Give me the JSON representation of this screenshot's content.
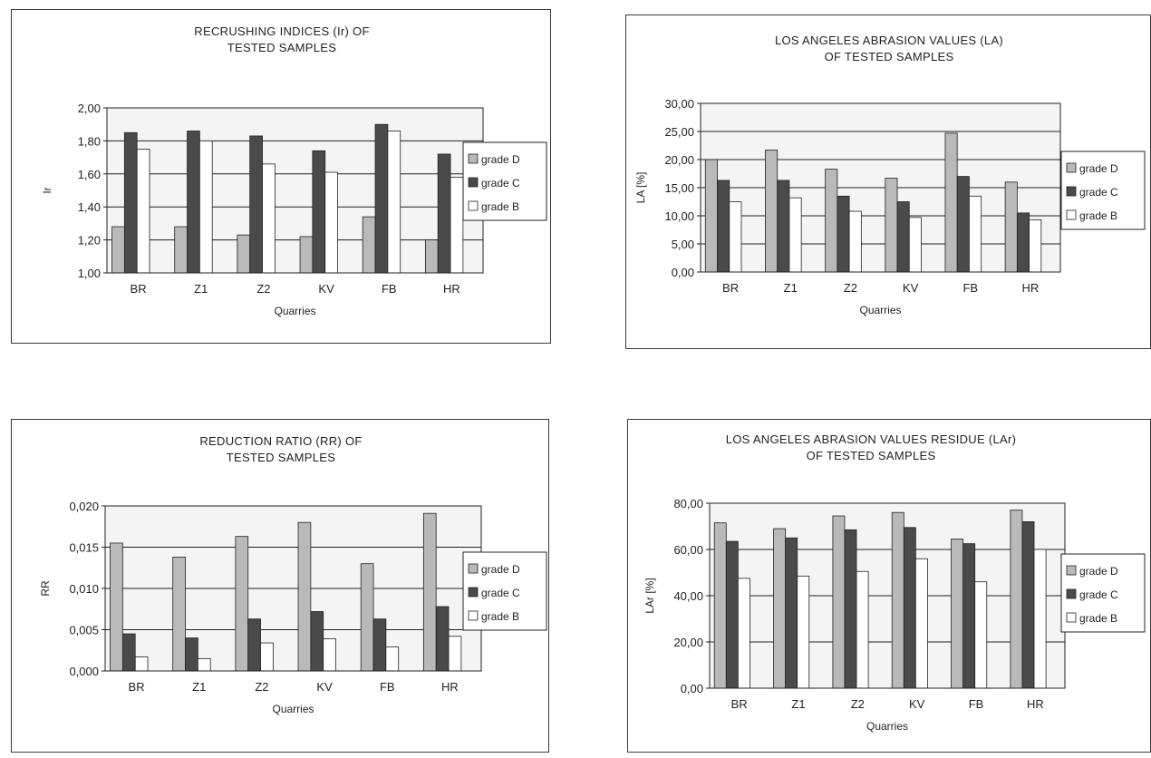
{
  "chart_data": [
    {
      "type": "bar",
      "title": "RECRUSHING INDICES (Ir) OF",
      "subtitle": "TESTED SAMPLES",
      "xlabel": "Quarries",
      "ylabel": "Ir",
      "categories": [
        "BR",
        "Z1",
        "Z2",
        "KV",
        "FB",
        "HR"
      ],
      "ylim": [
        1.0,
        2.0
      ],
      "yticks": [
        "1,00",
        "1,20",
        "1,40",
        "1,60",
        "1,80",
        "2,00"
      ],
      "grid": true,
      "legend": "right",
      "series": [
        {
          "name": "grade D",
          "values": [
            1.28,
            1.28,
            1.23,
            1.22,
            1.34,
            1.2
          ]
        },
        {
          "name": "grade C",
          "values": [
            1.85,
            1.86,
            1.83,
            1.74,
            1.9,
            1.72
          ]
        },
        {
          "name": "grade B",
          "values": [
            1.75,
            1.8,
            1.66,
            1.61,
            1.86,
            1.58
          ]
        }
      ]
    },
    {
      "type": "bar",
      "title": "LOS ANGELES ABRASION VALUES (LA)",
      "subtitle": "OF TESTED SAMPLES",
      "xlabel": "Quarries",
      "ylabel": "LA [%]",
      "categories": [
        "BR",
        "Z1",
        "Z2",
        "KV",
        "FB",
        "HR"
      ],
      "ylim": [
        0,
        30
      ],
      "yticks": [
        "0,00",
        "5,00",
        "10,00",
        "15,00",
        "20,00",
        "25,00",
        "30,00"
      ],
      "grid": true,
      "legend": "right",
      "series": [
        {
          "name": "grade D",
          "values": [
            20.0,
            21.7,
            18.3,
            16.7,
            24.7,
            16.0
          ]
        },
        {
          "name": "grade C",
          "values": [
            16.3,
            16.3,
            13.5,
            12.5,
            17.0,
            10.5
          ]
        },
        {
          "name": "grade B",
          "values": [
            12.5,
            13.2,
            10.8,
            9.7,
            13.5,
            9.3
          ]
        }
      ]
    },
    {
      "type": "bar",
      "title": "REDUCTION RATIO (RR) OF",
      "subtitle": "TESTED SAMPLES",
      "xlabel": "Quarries",
      "ylabel": "RR",
      "categories": [
        "BR",
        "Z1",
        "Z2",
        "KV",
        "FB",
        "HR"
      ],
      "ylim": [
        0,
        0.02
      ],
      "yticks": [
        "0,000",
        "0,005",
        "0,010",
        "0,015",
        "0,020"
      ],
      "grid": true,
      "legend": "right",
      "series": [
        {
          "name": "grade D",
          "values": [
            0.0155,
            0.0138,
            0.0163,
            0.018,
            0.013,
            0.0191
          ]
        },
        {
          "name": "grade C",
          "values": [
            0.0045,
            0.004,
            0.0063,
            0.0072,
            0.0063,
            0.0078
          ]
        },
        {
          "name": "grade B",
          "values": [
            0.0017,
            0.0015,
            0.0034,
            0.0039,
            0.0029,
            0.0042
          ]
        }
      ]
    },
    {
      "type": "bar",
      "title": "LOS ANGELES ABRASION VALUES RESIDUE (LAr)",
      "subtitle": "OF TESTED SAMPLES",
      "xlabel": "Quarries",
      "ylabel": "LAr [%]",
      "categories": [
        "BR",
        "Z1",
        "Z2",
        "KV",
        "FB",
        "HR"
      ],
      "ylim": [
        0,
        80
      ],
      "yticks": [
        "0,00",
        "20,00",
        "40,00",
        "60,00",
        "80,00"
      ],
      "grid": true,
      "legend": "right",
      "series": [
        {
          "name": "grade D",
          "values": [
            71.5,
            69.0,
            74.5,
            76.0,
            64.5,
            77.0
          ]
        },
        {
          "name": "grade C",
          "values": [
            63.5,
            65.0,
            68.5,
            69.5,
            62.5,
            72.0
          ]
        },
        {
          "name": "grade B",
          "values": [
            47.5,
            48.5,
            50.5,
            56.0,
            46.0,
            60.0
          ]
        }
      ]
    }
  ],
  "colors": {
    "grade D": "#b9b9b9",
    "grade C": "#4a4a4a",
    "grade B": "#ffffff",
    "plot_bg": "#f4f4f4",
    "grid": "#222222"
  }
}
